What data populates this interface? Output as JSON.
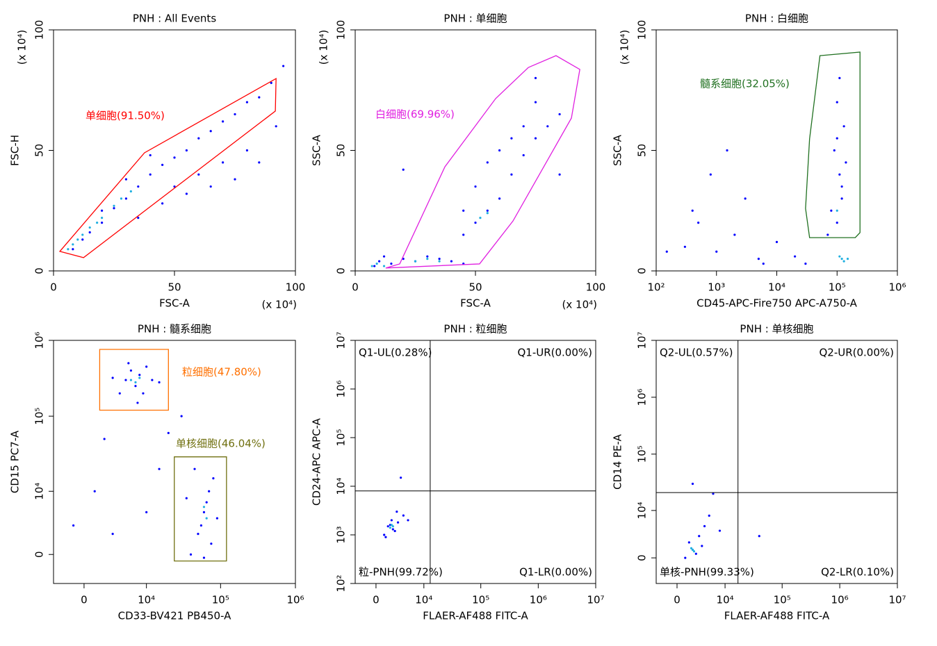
{
  "chart_data": [
    {
      "type": "scatter",
      "title": "PNH : All Events",
      "xlabel": "FSC-A",
      "ylabel": "FSC-H",
      "x_multiplier": "(x 10⁴)",
      "y_multiplier": "(x 10⁴)",
      "xscale": "linear",
      "yscale": "linear",
      "xlim": [
        0,
        100
      ],
      "ylim": [
        0,
        100
      ],
      "xticks": [
        0,
        50,
        100
      ],
      "yticks": [
        0,
        50,
        100
      ],
      "series": [
        {
          "color": "#0000ff",
          "x": [
            8,
            12,
            15,
            20,
            25,
            30,
            35,
            40,
            45,
            50,
            55,
            60,
            65,
            70,
            75,
            80,
            85,
            90,
            95,
            50,
            60,
            70,
            80,
            35,
            45,
            55,
            65,
            75,
            85,
            92,
            40,
            30,
            20
          ],
          "y": [
            9,
            13,
            16,
            20,
            26,
            30,
            35,
            40,
            44,
            47,
            50,
            55,
            58,
            62,
            65,
            70,
            72,
            78,
            85,
            35,
            40,
            45,
            50,
            22,
            28,
            32,
            35,
            38,
            45,
            60,
            48,
            38,
            25
          ]
        },
        {
          "color": "#20b0e0",
          "x": [
            6,
            8,
            10,
            12,
            15,
            18,
            20,
            25,
            28,
            32
          ],
          "y": [
            9,
            11,
            13,
            15,
            18,
            20,
            22,
            27,
            30,
            33
          ]
        }
      ],
      "gates": [
        {
          "label": "单细胞(91.50%)",
          "color": "#ff0000",
          "x": [
            2.6,
            12.4,
            91.7,
            92,
            37.6
          ],
          "y": [
            8.1,
            5.5,
            66.3,
            79.8,
            49
          ]
        }
      ]
    },
    {
      "type": "scatter",
      "title": "PNH : 单细胞",
      "xlabel": "FSC-A",
      "ylabel": "SSC-A",
      "x_multiplier": "(x 10⁴)",
      "y_multiplier": "(x 10⁴)",
      "xscale": "linear",
      "yscale": "linear",
      "xlim": [
        0,
        100
      ],
      "ylim": [
        0,
        100
      ],
      "xticks": [
        0,
        50,
        100
      ],
      "yticks": [
        0,
        50,
        100
      ],
      "series": [
        {
          "color": "#0000ff",
          "x": [
            8,
            10,
            12,
            15,
            20,
            25,
            30,
            35,
            40,
            45,
            45,
            50,
            55,
            60,
            65,
            70,
            75,
            80,
            85,
            55,
            60,
            65,
            70,
            75,
            50,
            45,
            20,
            85,
            75
          ],
          "y": [
            2,
            4,
            6,
            3,
            5,
            4,
            6,
            5,
            4,
            3,
            15,
            20,
            25,
            30,
            40,
            48,
            55,
            60,
            65,
            45,
            50,
            55,
            60,
            70,
            35,
            25,
            42,
            40,
            80
          ]
        },
        {
          "color": "#20b0e0",
          "x": [
            7,
            9,
            12,
            25,
            30,
            35,
            52,
            55
          ],
          "y": [
            2,
            3,
            2,
            4,
            5,
            4,
            22,
            24
          ]
        }
      ],
      "gates": [
        {
          "label": "白细胞(69.96%)",
          "color": "#e020e0",
          "x": [
            12.7,
            51.7,
            65.6,
            89.9,
            93.4,
            83.5,
            72,
            58.4,
            37.3,
            18.5
          ],
          "y": [
            1.2,
            2.9,
            20.7,
            63.4,
            83.6,
            89.3,
            84.4,
            71.5,
            43.2,
            2.9
          ]
        }
      ]
    },
    {
      "type": "scatter",
      "title": "PNH : 白细胞",
      "xlabel": "CD45-APC-Fire750 APC-A750-A",
      "ylabel": "SSC-A",
      "y_multiplier": "(x 10⁴)",
      "xscale": "log",
      "yscale": "linear",
      "xlim": [
        100,
        1000000
      ],
      "ylim": [
        0,
        100
      ],
      "xticks": [
        {
          "value": 100,
          "label": "10²"
        },
        {
          "value": 1000,
          "label": "10³"
        },
        {
          "value": 10000,
          "label": "10⁴"
        },
        {
          "value": 100000,
          "label": "10⁵"
        },
        {
          "value": 1000000,
          "label": "10⁶"
        }
      ],
      "yticks": [
        0,
        50,
        100
      ],
      "series": [
        {
          "color": "#0000ff",
          "x": [
            300,
            500,
            1000,
            2000,
            5000,
            10000,
            20000,
            3000,
            800,
            400,
            1500,
            30000,
            150,
            6000,
            100000,
            120000,
            110000,
            90000,
            130000,
            100000,
            110000,
            80000,
            120000,
            140000,
            100000,
            70000
          ],
          "y": [
            10,
            20,
            8,
            15,
            5,
            12,
            6,
            30,
            40,
            25,
            50,
            3,
            8,
            3,
            20,
            30,
            40,
            50,
            60,
            70,
            80,
            25,
            35,
            45,
            55,
            15
          ]
        },
        {
          "color": "#20b0e0",
          "x": [
            120000,
            130000,
            110000,
            150000,
            100000
          ],
          "y": [
            5,
            4,
            6,
            5,
            25
          ]
        }
      ],
      "gates": [
        {
          "label": "髓系细胞(32.05%)",
          "color": "#207020",
          "x": [
            52000,
            240000,
            240000,
            200000,
            35000,
            30000,
            35000
          ],
          "y": [
            89.3,
            90.8,
            15.9,
            13.8,
            13.8,
            25.9,
            54.8
          ]
        }
      ]
    },
    {
      "type": "scatter",
      "title": "PNH : 髓系细胞",
      "xlabel": "CD33-BV421 PB450-A",
      "ylabel": "CD15 PC7-A",
      "xscale": "biex",
      "yscale": "biex",
      "xlim": [
        -3250,
        1000000
      ],
      "ylim": [
        -3000,
        1000000
      ],
      "xticks": [
        0,
        {
          "value": 10000,
          "label": "10⁴"
        },
        {
          "value": 100000,
          "label": "10⁵"
        },
        {
          "value": 1000000,
          "label": "10⁶"
        }
      ],
      "yticks": [
        0,
        {
          "value": 10000,
          "label": "10⁴"
        },
        {
          "value": 100000,
          "label": "10⁵"
        },
        {
          "value": 1000000,
          "label": "10⁶"
        }
      ],
      "series": [
        {
          "color": "#0000ff",
          "x": [
            4000,
            5000,
            6000,
            7000,
            8000,
            9000,
            10000,
            12000,
            5500,
            7500,
            15000,
            3000,
            40000,
            50000,
            60000,
            70000,
            80000,
            55000,
            65000,
            45000,
            90000,
            75000,
            35000,
            60000,
            -1000,
            1000,
            3000,
            2000,
            20000,
            30000,
            15000,
            10000
          ],
          "y": [
            200000,
            300000,
            400000,
            250000,
            350000,
            200000,
            450000,
            300000,
            500000,
            150000,
            280000,
            320000,
            0,
            2000,
            5000,
            10000,
            15000,
            3000,
            7000,
            20000,
            4000,
            1000,
            8000,
            -300,
            3000,
            10000,
            2000,
            50000,
            60000,
            100000,
            20000,
            5000
          ]
        },
        {
          "color": "#20b0e0",
          "x": [
            6000,
            7000,
            8000,
            60000,
            65000
          ],
          "y": [
            300000,
            280000,
            320000,
            6000,
            4000
          ]
        }
      ],
      "gates": [
        {
          "label": "粒细胞(47.80%)",
          "color": "#ff7000",
          "x": [
            1500,
            20000,
            20000,
            1500
          ],
          "y": [
            760000,
            760000,
            120000,
            120000
          ]
        },
        {
          "label": "单核细胞(46.04%)",
          "color": "#707010",
          "x": [
            24000,
            120000,
            120000,
            24000
          ],
          "y": [
            29000,
            29000,
            -600,
            -600
          ]
        }
      ]
    },
    {
      "type": "scatter",
      "title": "PNH : 粒细胞",
      "xlabel": "FLAER-AF488 FITC-A",
      "ylabel": "CD24-APC APC-A",
      "xscale": "biex",
      "yscale": "log",
      "xlim": [
        -2800,
        10000000
      ],
      "ylim": [
        100,
        10000000
      ],
      "xticks": [
        0,
        {
          "value": 10000,
          "label": "10⁴"
        },
        {
          "value": 100000,
          "label": "10⁵"
        },
        {
          "value": 1000000,
          "label": "10⁶"
        },
        {
          "value": 10000000,
          "label": "10⁷"
        }
      ],
      "yticks": [
        {
          "value": 100,
          "label": "10²"
        },
        {
          "value": 1000,
          "label": "10³"
        },
        {
          "value": 10000,
          "label": "10⁴"
        },
        {
          "value": 100000,
          "label": "10⁵"
        },
        {
          "value": 1000000,
          "label": "10⁶"
        },
        {
          "value": 10000000,
          "label": "10⁷"
        }
      ],
      "series": [
        {
          "color": "#0000ff",
          "x": [
            1000,
            1500,
            2000,
            2500,
            3000,
            4000,
            1200,
            1800,
            2200,
            2800,
            5000,
            3500
          ],
          "y": [
            1000,
            1500,
            2000,
            1200,
            1800,
            2500,
            900,
            1600,
            1300,
            3000,
            2000,
            15000
          ]
        },
        {
          "color": "#20b0e0",
          "x": [
            1800,
            2000,
            2200
          ],
          "y": [
            1400,
            1600,
            1500
          ]
        }
      ],
      "quadrant": {
        "x": 13000,
        "y": 8000,
        "labels": [
          "Q1-UL(0.28%)",
          "Q1-UR(0.00%)",
          "粒-PNH(99.72%)",
          "Q1-LR(0.00%)"
        ]
      }
    },
    {
      "type": "scatter",
      "title": "PNH : 单核细胞",
      "xlabel": "FLAER-AF488 FITC-A",
      "ylabel": "CD14 PE-A",
      "xscale": "biex",
      "yscale": "biex",
      "xlim": [
        -2800,
        10000000
      ],
      "ylim": [
        -3700,
        10000000
      ],
      "xticks": [
        0,
        {
          "value": 10000,
          "label": "10⁴"
        },
        {
          "value": 100000,
          "label": "10⁵"
        },
        {
          "value": 1000000,
          "label": "10⁶"
        },
        {
          "value": 10000000,
          "label": "10⁷"
        }
      ],
      "yticks": [
        0,
        {
          "value": 10000,
          "label": "10⁴"
        },
        {
          "value": 100000,
          "label": "10⁵"
        },
        {
          "value": 1000000,
          "label": "10⁶"
        },
        {
          "value": 10000000,
          "label": "10⁷"
        }
      ],
      "series": [
        {
          "color": "#0000ff",
          "x": [
            1000,
            2000,
            3000,
            4000,
            1500,
            2500,
            5000,
            6000,
            2000,
            3500,
            8000,
            40000
          ],
          "y": [
            0,
            1000,
            3000,
            5000,
            2000,
            500,
            8000,
            20000,
            30000,
            1500,
            4000,
            3000
          ]
        },
        {
          "color": "#20b0e0",
          "x": [
            2000,
            2200,
            1800
          ],
          "y": [
            1000,
            800,
            1200
          ]
        }
      ],
      "quadrant": {
        "x": 17000,
        "y": 21000,
        "labels": [
          "Q2-UL(0.57%)",
          "Q2-UR(0.00%)",
          "单核-PNH(99.33%)",
          "Q2-LR(0.10%)"
        ]
      }
    }
  ]
}
